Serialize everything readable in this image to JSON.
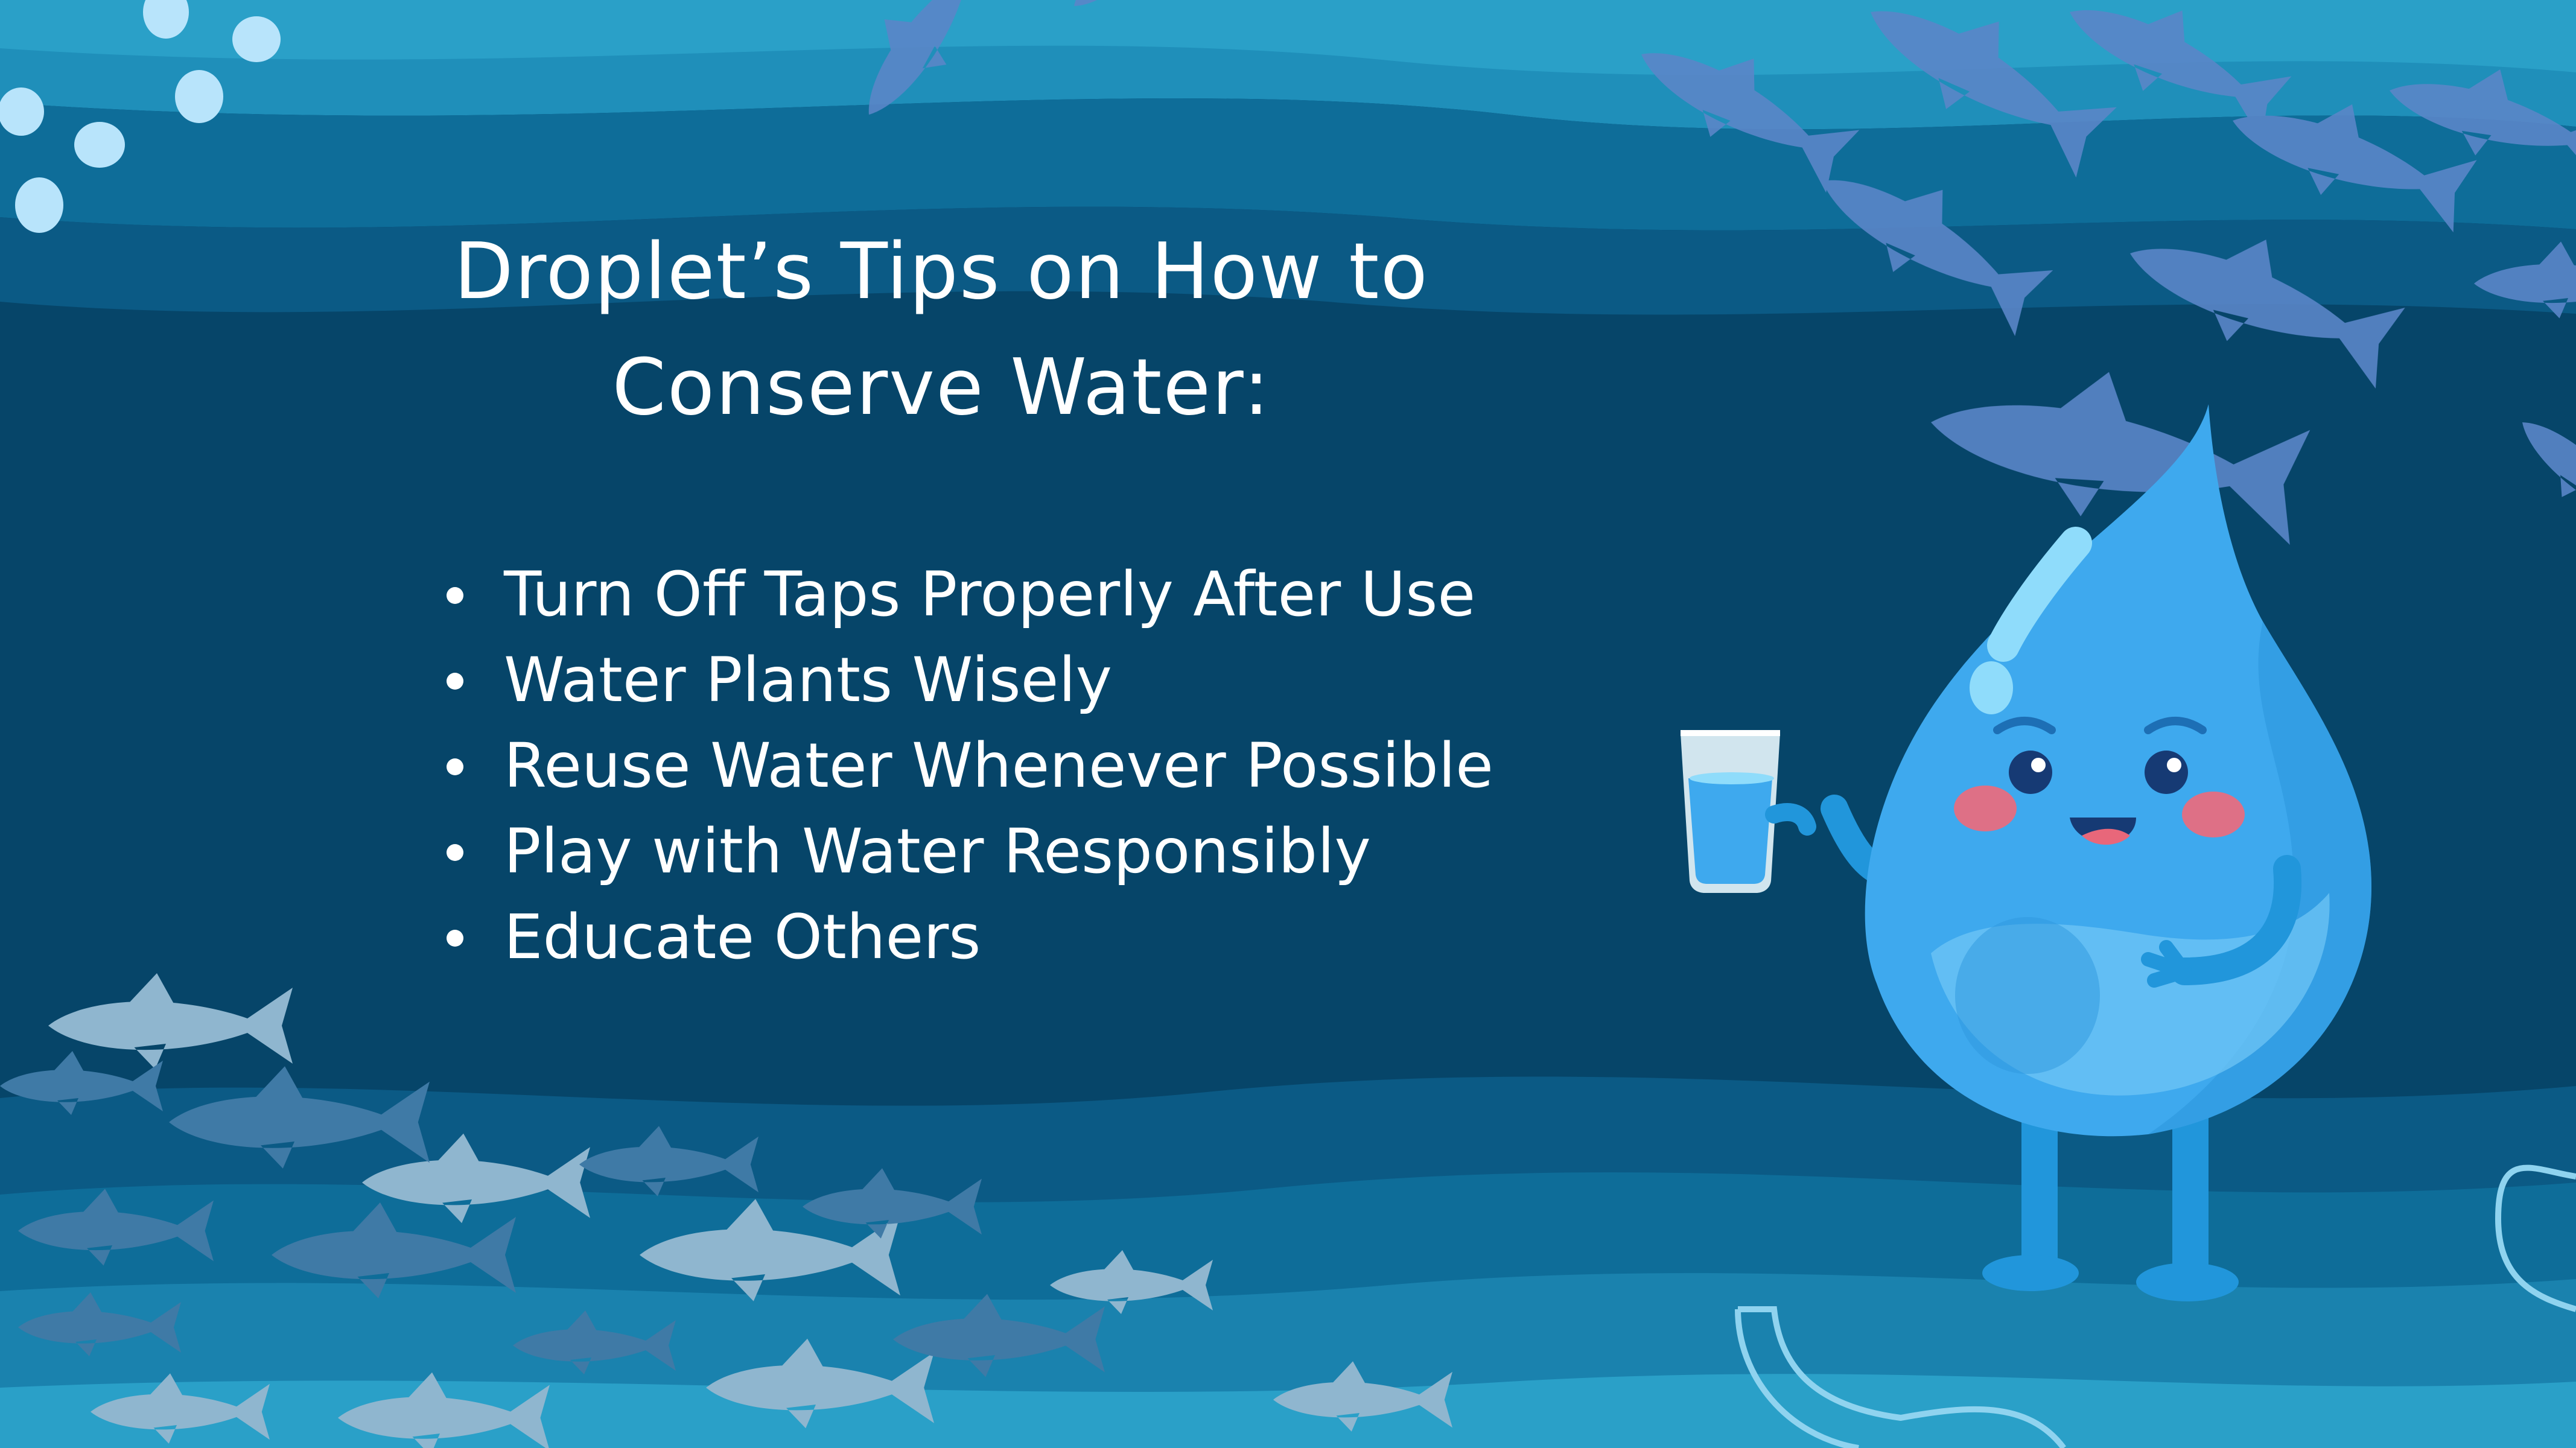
{
  "slide": {
    "title_line1": "Droplet’s Tips on How to",
    "title_line2": "Conserve Water:",
    "tips": [
      "Turn Off Taps Properly After Use",
      "Water Plants Wisely",
      "Reuse Water Whenever Possible",
      "Play with Water Responsibly",
      "Educate Others"
    ]
  },
  "colors": {
    "background": "#064569",
    "wave_light": "#1f8fba",
    "wave_mid": "#0e6d99",
    "fish_top": "#5b86c8",
    "fish_bottom": "#8fb6cf",
    "droplet": "#3ea9ee",
    "text": "#ffffff"
  },
  "icons": [
    "fish-school-icon",
    "water-droplet-mascot-icon",
    "water-glass-icon",
    "bubble-icon"
  ]
}
